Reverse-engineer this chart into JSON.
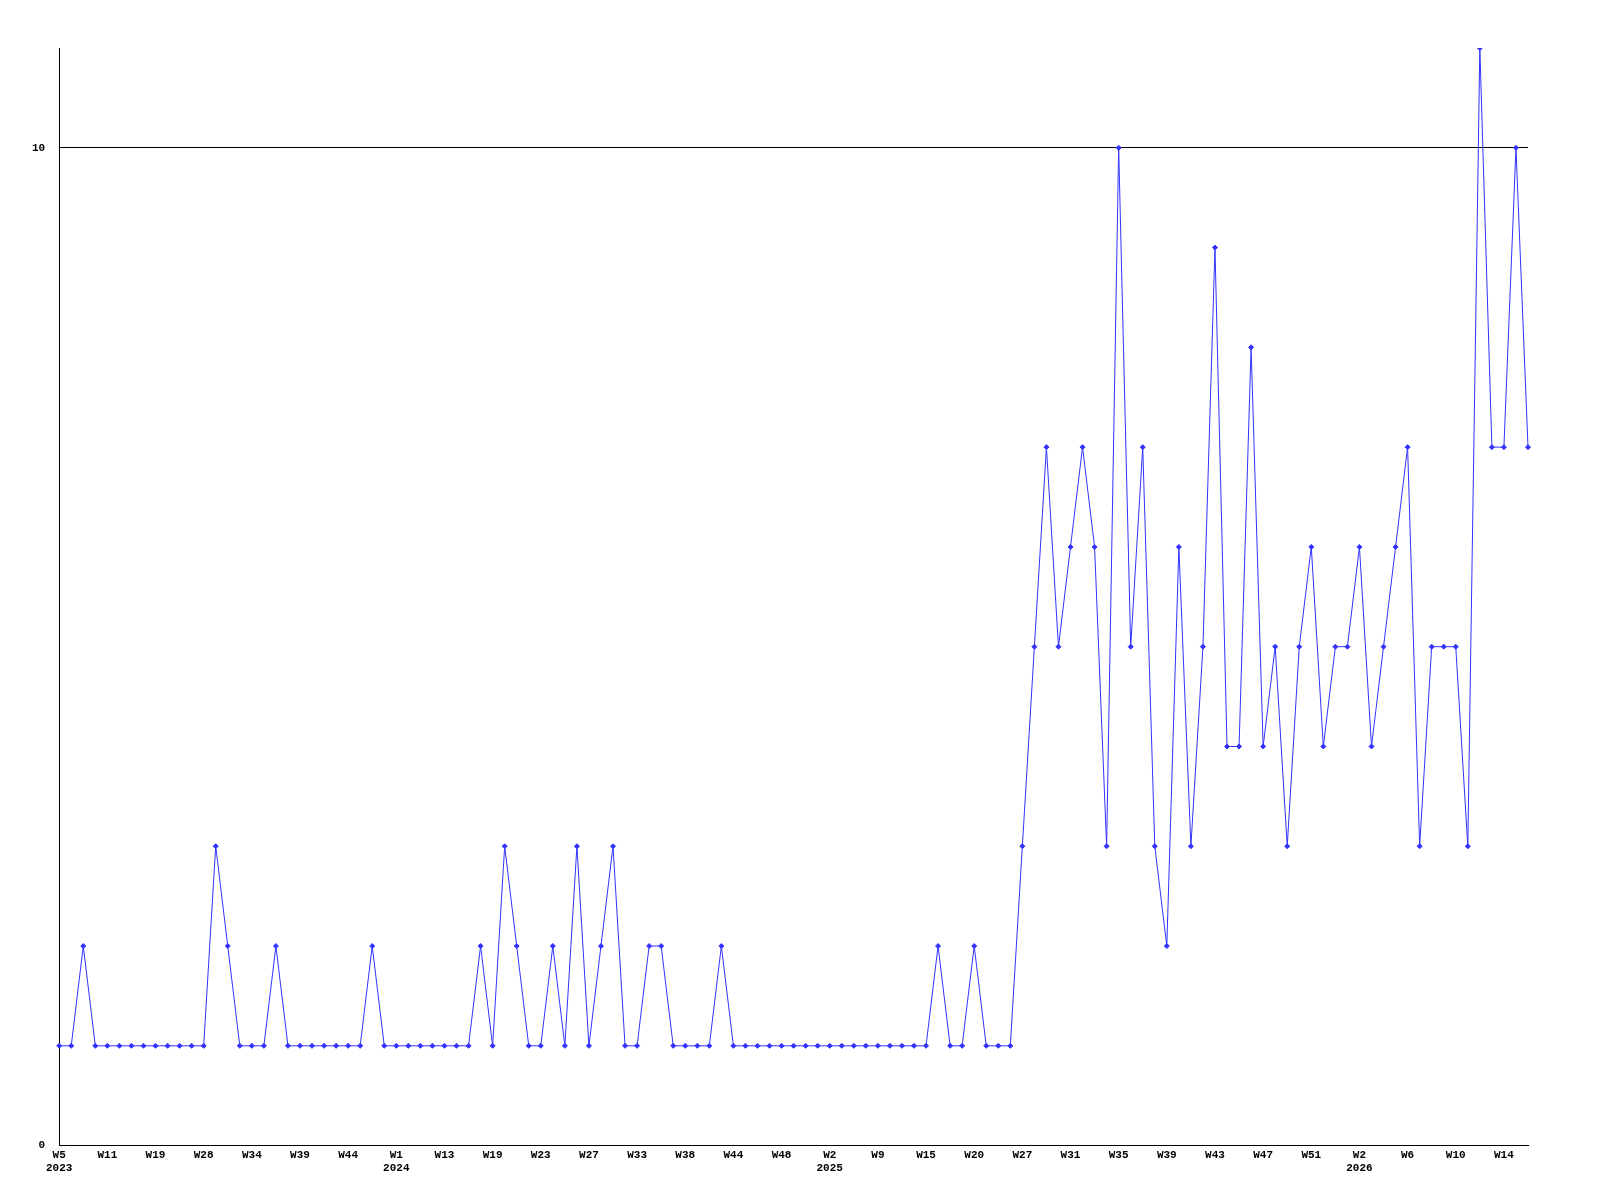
{
  "chart_data": {
    "type": "line",
    "categories": [
      "W5\n2023",
      null,
      null,
      null,
      "W11",
      null,
      null,
      null,
      "W19",
      null,
      null,
      null,
      "W28",
      null,
      null,
      null,
      "W34",
      null,
      null,
      null,
      "W39",
      null,
      null,
      null,
      "W44",
      null,
      null,
      null,
      "W1\n2024",
      null,
      null,
      null,
      "W13",
      null,
      null,
      null,
      "W19",
      null,
      null,
      null,
      "W23",
      null,
      null,
      null,
      "W27",
      null,
      null,
      null,
      "W33",
      null,
      null,
      null,
      "W38",
      null,
      null,
      null,
      "W44",
      null,
      null,
      null,
      "W48",
      null,
      null,
      null,
      "W2\n2025",
      null,
      null,
      null,
      "W9",
      null,
      null,
      null,
      "W15",
      null,
      null,
      null,
      "W20",
      null,
      null,
      null,
      "W27",
      null,
      null,
      null,
      "W31",
      null,
      null,
      null,
      "W35",
      null,
      null,
      null,
      "W39",
      null,
      null,
      null,
      "W43",
      null,
      null,
      null,
      "W47",
      null,
      null,
      null,
      "W51",
      null,
      null,
      null,
      "W2\n2026",
      null,
      null,
      null,
      "W6",
      null,
      null,
      null,
      "W10",
      null,
      null,
      null,
      "W14",
      null,
      null
    ],
    "series": [
      {
        "color": "#3333ff",
        "values": [
          1,
          1,
          2,
          1,
          1,
          1,
          1,
          1,
          1,
          1,
          1,
          1,
          1,
          3,
          2,
          1,
          1,
          1,
          2,
          1,
          1,
          1,
          1,
          1,
          1,
          1,
          2,
          1,
          1,
          1,
          1,
          1,
          1,
          1,
          1,
          2,
          1,
          3,
          2,
          1,
          1,
          2,
          1,
          3,
          1,
          2,
          3,
          1,
          1,
          2,
          2,
          1,
          1,
          1,
          1,
          2,
          1,
          1,
          1,
          1,
          1,
          1,
          1,
          1,
          1,
          1,
          1,
          1,
          1,
          1,
          1,
          1,
          1,
          2,
          1,
          1,
          2,
          1,
          1,
          1,
          3,
          5,
          7,
          5,
          6,
          7,
          6,
          3,
          10,
          5,
          7,
          3,
          2,
          6,
          3,
          5,
          9,
          4,
          4,
          8,
          4,
          5,
          3,
          5,
          6,
          4,
          5,
          5,
          6,
          4,
          5,
          6,
          7,
          3,
          5,
          5,
          5,
          3,
          11,
          7,
          7,
          10,
          7
        ]
      }
    ],
    "ylim": [
      0,
      11
    ],
    "yticks": [
      0,
      10
    ],
    "grid": "y",
    "marker": "diamond",
    "line_style": "solid",
    "legend": false
  }
}
